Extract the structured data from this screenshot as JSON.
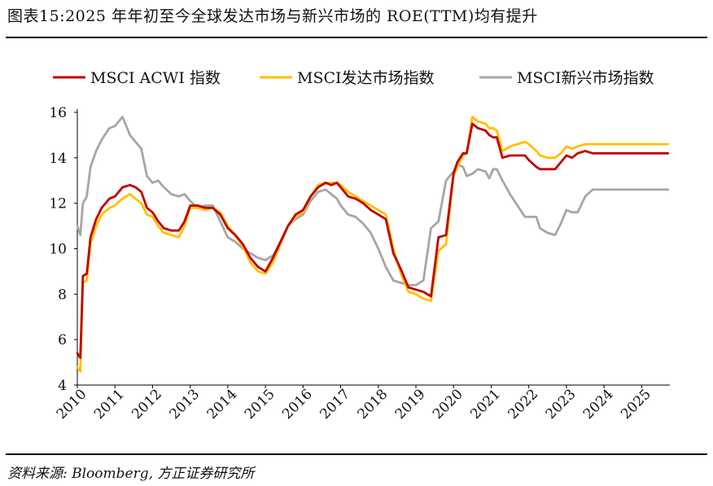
{
  "title": "图表15:2025 年年初至今全球发达市场与新兴市场的 ROE(TTM)均有提升",
  "source": "资料来源: Bloomberg, 方正证券研究所",
  "chart_data": {
    "type": "line",
    "title": "图表15:2025 年年初至今全球发达市场与新兴市场的 ROE(TTM)均有提升",
    "xlabel": "",
    "ylabel": "",
    "x_range": [
      2010.0,
      2025.75
    ],
    "ylim": [
      4,
      16
    ],
    "y_ticks": [
      4,
      6,
      8,
      10,
      12,
      14,
      16
    ],
    "x_tick_labels": [
      "2010",
      "2011",
      "2012",
      "2013",
      "2014",
      "2015",
      "2016",
      "2017",
      "2018",
      "2019",
      "2020",
      "2021",
      "2022",
      "2023",
      "2024",
      "2025"
    ],
    "grid": false,
    "legend_position": "top",
    "series": [
      {
        "name": "MSCI ACWI 指数",
        "color": "#C00000",
        "x": [
          2010.0,
          2010.08,
          2010.15,
          2010.25,
          2010.35,
          2010.5,
          2010.65,
          2010.85,
          2011.0,
          2011.2,
          2011.4,
          2011.55,
          2011.7,
          2011.85,
          2012.0,
          2012.15,
          2012.3,
          2012.5,
          2012.7,
          2012.85,
          2013.0,
          2013.2,
          2013.4,
          2013.6,
          2013.8,
          2014.0,
          2014.2,
          2014.4,
          2014.6,
          2014.8,
          2015.0,
          2015.2,
          2015.4,
          2015.6,
          2015.8,
          2016.0,
          2016.2,
          2016.4,
          2016.6,
          2016.75,
          2016.9,
          2017.0,
          2017.2,
          2017.4,
          2017.6,
          2017.8,
          2018.0,
          2018.2,
          2018.4,
          2018.6,
          2018.8,
          2019.0,
          2019.2,
          2019.4,
          2019.6,
          2019.8,
          2020.0,
          2020.1,
          2020.25,
          2020.35,
          2020.5,
          2020.65,
          2020.85,
          2020.95,
          2021.05,
          2021.15,
          2021.3,
          2021.5,
          2021.7,
          2021.9,
          2022.0,
          2022.2,
          2022.3,
          2022.5,
          2022.7,
          2022.85,
          2023.0,
          2023.15,
          2023.3,
          2023.5,
          2023.7,
          2023.85,
          2024.0,
          2024.15,
          2024.3,
          2024.5,
          2024.7,
          2024.85,
          2025.0,
          2025.2,
          2025.3,
          2025.45,
          2025.6,
          2025.7
        ],
        "values": [
          5.4,
          5.2,
          8.8,
          8.9,
          10.5,
          11.3,
          11.8,
          12.2,
          12.3,
          12.7,
          12.8,
          12.7,
          12.5,
          11.8,
          11.6,
          11.2,
          10.9,
          10.8,
          10.8,
          11.2,
          11.9,
          11.9,
          11.8,
          11.8,
          11.5,
          10.9,
          10.6,
          10.2,
          9.6,
          9.2,
          9.0,
          9.6,
          10.3,
          11.0,
          11.5,
          11.7,
          12.3,
          12.7,
          12.9,
          12.8,
          12.9,
          12.7,
          12.3,
          12.2,
          12.0,
          11.7,
          11.5,
          11.3,
          9.8,
          9.1,
          8.3,
          8.2,
          8.1,
          7.9,
          10.5,
          10.6,
          13.3,
          13.8,
          14.2,
          14.2,
          15.5,
          15.3,
          15.2,
          15.0,
          14.9,
          14.9,
          14.0,
          14.1,
          14.1,
          14.1,
          13.9,
          13.6,
          13.5,
          13.5,
          13.5,
          13.8,
          14.1,
          14.0,
          14.2,
          14.3,
          14.2,
          14.2,
          14.2,
          14.2,
          14.2,
          14.2,
          14.2,
          14.2,
          14.2,
          14.2,
          14.2,
          14.2,
          14.2,
          14.2
        ],
        "width": 2.8
      },
      {
        "name": "MSCI发达市场指数",
        "color": "#FFC000",
        "x": [
          2010.0,
          2010.08,
          2010.15,
          2010.25,
          2010.35,
          2010.5,
          2010.65,
          2010.85,
          2011.0,
          2011.2,
          2011.4,
          2011.55,
          2011.7,
          2011.85,
          2012.0,
          2012.15,
          2012.3,
          2012.5,
          2012.7,
          2012.85,
          2013.0,
          2013.2,
          2013.4,
          2013.6,
          2013.8,
          2014.0,
          2014.2,
          2014.4,
          2014.6,
          2014.8,
          2015.0,
          2015.2,
          2015.4,
          2015.6,
          2015.8,
          2016.0,
          2016.2,
          2016.4,
          2016.6,
          2016.75,
          2016.9,
          2017.0,
          2017.2,
          2017.4,
          2017.6,
          2017.8,
          2018.0,
          2018.2,
          2018.4,
          2018.6,
          2018.8,
          2019.0,
          2019.2,
          2019.4,
          2019.6,
          2019.8,
          2020.0,
          2020.1,
          2020.25,
          2020.35,
          2020.5,
          2020.65,
          2020.85,
          2020.95,
          2021.05,
          2021.15,
          2021.3,
          2021.5,
          2021.7,
          2021.9,
          2022.0,
          2022.2,
          2022.3,
          2022.5,
          2022.7,
          2022.85,
          2023.0,
          2023.15,
          2023.3,
          2023.5,
          2023.7,
          2023.85,
          2024.0,
          2024.15,
          2024.3,
          2024.5,
          2024.7,
          2024.85,
          2025.0,
          2025.2,
          2025.3,
          2025.45,
          2025.6,
          2025.7
        ],
        "values": [
          4.8,
          4.6,
          8.5,
          8.6,
          10.2,
          11.0,
          11.5,
          11.8,
          11.9,
          12.2,
          12.4,
          12.2,
          12.0,
          11.5,
          11.4,
          11.0,
          10.7,
          10.6,
          10.5,
          11.0,
          11.8,
          11.8,
          11.7,
          11.8,
          11.6,
          11.0,
          10.6,
          10.1,
          9.4,
          9.0,
          8.9,
          9.4,
          10.2,
          11.0,
          11.4,
          11.6,
          12.3,
          12.8,
          12.9,
          12.9,
          12.9,
          12.8,
          12.5,
          12.3,
          12.1,
          11.9,
          11.7,
          11.5,
          10.0,
          8.9,
          8.1,
          8.0,
          7.8,
          7.7,
          9.9,
          10.2,
          13.2,
          13.6,
          14.1,
          14.2,
          15.8,
          15.6,
          15.5,
          15.3,
          15.3,
          15.2,
          14.3,
          14.5,
          14.6,
          14.7,
          14.6,
          14.3,
          14.1,
          14.0,
          14.0,
          14.2,
          14.5,
          14.4,
          14.5,
          14.6,
          14.6,
          14.6,
          14.6,
          14.6,
          14.6,
          14.6,
          14.6,
          14.6,
          14.6,
          14.6,
          14.6,
          14.6,
          14.6,
          14.6
        ],
        "width": 2.8
      },
      {
        "name": "MSCI新兴市场指数",
        "color": "#A6A6A6",
        "x": [
          2010.0,
          2010.08,
          2010.15,
          2010.25,
          2010.35,
          2010.5,
          2010.65,
          2010.85,
          2011.0,
          2011.2,
          2011.4,
          2011.55,
          2011.7,
          2011.85,
          2012.0,
          2012.15,
          2012.3,
          2012.5,
          2012.7,
          2012.85,
          2013.0,
          2013.2,
          2013.4,
          2013.6,
          2013.8,
          2014.0,
          2014.2,
          2014.4,
          2014.6,
          2014.8,
          2015.0,
          2015.2,
          2015.4,
          2015.6,
          2015.8,
          2016.0,
          2016.2,
          2016.4,
          2016.6,
          2016.75,
          2016.9,
          2017.0,
          2017.2,
          2017.4,
          2017.6,
          2017.8,
          2018.0,
          2018.2,
          2018.4,
          2018.6,
          2018.8,
          2019.0,
          2019.2,
          2019.4,
          2019.6,
          2019.8,
          2020.0,
          2020.1,
          2020.25,
          2020.35,
          2020.5,
          2020.65,
          2020.85,
          2020.95,
          2021.05,
          2021.15,
          2021.3,
          2021.5,
          2021.7,
          2021.9,
          2022.0,
          2022.2,
          2022.3,
          2022.5,
          2022.7,
          2022.85,
          2023.0,
          2023.15,
          2023.3,
          2023.5,
          2023.7,
          2023.85,
          2024.0,
          2024.15,
          2024.3,
          2024.5,
          2024.7,
          2024.85,
          2025.0,
          2025.2,
          2025.3,
          2025.45,
          2025.6,
          2025.7
        ],
        "values": [
          11.0,
          10.6,
          12.0,
          12.3,
          13.6,
          14.3,
          14.8,
          15.3,
          15.4,
          15.8,
          15.0,
          14.7,
          14.4,
          13.2,
          12.9,
          13.0,
          12.7,
          12.4,
          12.3,
          12.4,
          12.1,
          11.8,
          11.9,
          11.9,
          11.2,
          10.5,
          10.3,
          10.0,
          9.8,
          9.6,
          9.5,
          9.7,
          10.3,
          11.0,
          11.3,
          11.5,
          12.1,
          12.5,
          12.6,
          12.4,
          12.2,
          11.9,
          11.5,
          11.4,
          11.1,
          10.7,
          10.0,
          9.2,
          8.6,
          8.5,
          8.4,
          8.4,
          8.6,
          10.9,
          11.2,
          13.0,
          13.4,
          13.7,
          13.6,
          13.2,
          13.3,
          13.5,
          13.4,
          13.1,
          13.5,
          13.5,
          13.0,
          12.4,
          11.9,
          11.4,
          11.4,
          11.4,
          10.9,
          10.7,
          10.6,
          11.1,
          11.7,
          11.6,
          11.6,
          12.3,
          12.6,
          12.6,
          12.6,
          12.6,
          12.6,
          12.6,
          12.6,
          12.6,
          12.6,
          12.6,
          12.6,
          12.6,
          12.6,
          12.6
        ],
        "width": 2.8
      }
    ]
  }
}
